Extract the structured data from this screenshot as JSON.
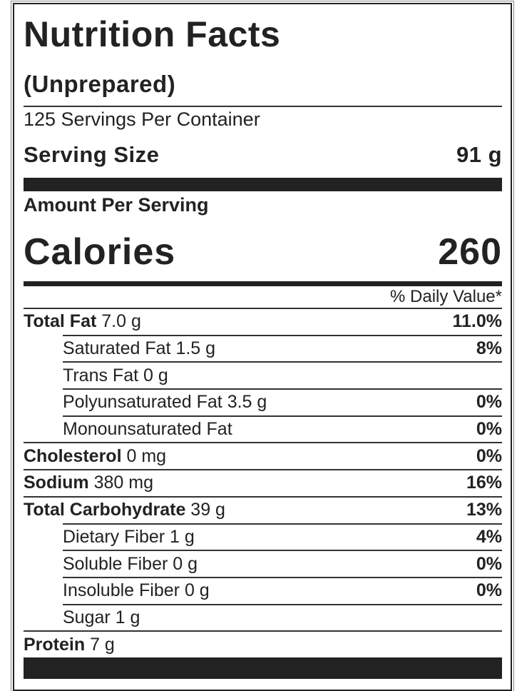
{
  "header": {
    "title": "Nutrition Facts",
    "subtitle": "(Unprepared)",
    "servings": "125 Servings Per Container",
    "serving_size_label": "Serving Size",
    "serving_size_value": "91 g",
    "amount_per_serving": "Amount Per Serving",
    "calories_label": "Calories",
    "calories_value": "260",
    "daily_value_header": "% Daily Value*"
  },
  "rows": [
    {
      "name": "Total Fat",
      "amount": "7.0 g",
      "dv": "11.0%"
    },
    {
      "name": "Saturated Fat",
      "amount": "1.5 g",
      "dv": "8%"
    },
    {
      "name": "Trans Fat",
      "amount": "0 g"
    },
    {
      "name": "Polyunsaturated Fat",
      "amount": "3.5 g",
      "dv": "0%"
    },
    {
      "name": "Monounsaturated Fat",
      "dv": "0%"
    },
    {
      "name": "Cholesterol",
      "amount": "0 mg",
      "dv": "0%"
    },
    {
      "name": "Sodium",
      "amount": "380 mg",
      "dv": "16%"
    },
    {
      "name": "Total Carbohydrate",
      "amount": "39 g",
      "dv": "13%"
    },
    {
      "name": "Dietary Fiber",
      "amount": "1 g",
      "dv": "4%"
    },
    {
      "name": "Soluble Fiber",
      "amount": "0 g",
      "dv": "0%"
    },
    {
      "name": "Insoluble Fiber",
      "amount": "0 g",
      "dv": "0%"
    },
    {
      "name": "Sugar",
      "amount": "1 g"
    },
    {
      "name": "Protein",
      "amount": "7 g"
    }
  ]
}
